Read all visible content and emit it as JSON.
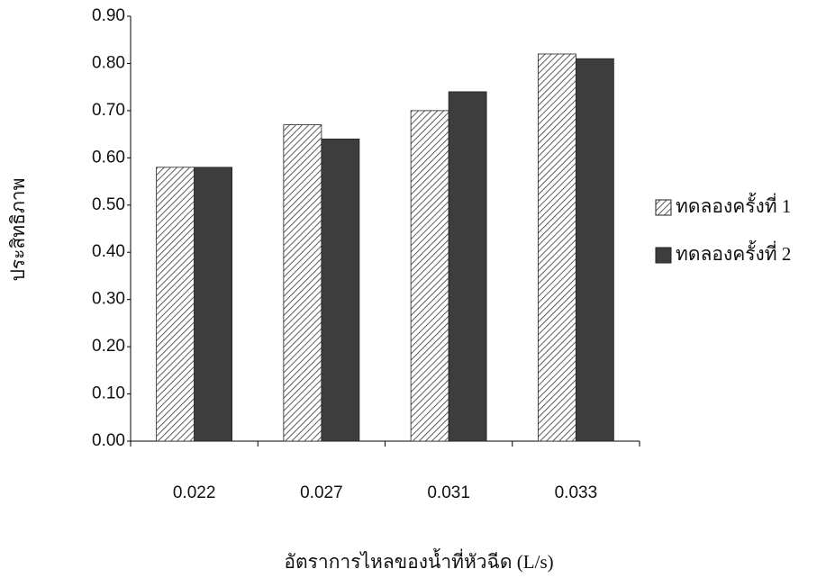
{
  "chart_data": {
    "type": "bar",
    "x_label": "อัตราการไหลของน้ำที่หัวฉีด (L/s)",
    "y_label": "ประสิทธิภาพ",
    "categories": [
      "0.022",
      "0.027",
      "0.031",
      "0.033"
    ],
    "series": [
      {
        "name": "ทดลองครั้งที่ 1",
        "color": "#333333",
        "fill": "hatch",
        "values": [
          0.58,
          0.67,
          0.7,
          0.82
        ]
      },
      {
        "name": "ทดลองครั้งที่ 2",
        "color": "#3d3d3d",
        "fill": "solid",
        "values": [
          0.58,
          0.64,
          0.74,
          0.81
        ]
      }
    ],
    "ylim": [
      0,
      0.9
    ],
    "yticks": [
      {
        "value": 0,
        "label": "0.00"
      },
      {
        "value": 0.1,
        "label": "0.10"
      },
      {
        "value": 0.2,
        "label": "0.20"
      },
      {
        "value": 0.3,
        "label": "0.30"
      },
      {
        "value": 0.4,
        "label": "0.40"
      },
      {
        "value": 0.5,
        "label": "0.50"
      },
      {
        "value": 0.6,
        "label": "0.60"
      },
      {
        "value": 0.7,
        "label": "0.70"
      },
      {
        "value": 0.8,
        "label": "0.80"
      },
      {
        "value": 0.9,
        "label": "0.90"
      }
    ],
    "legend": "right"
  }
}
